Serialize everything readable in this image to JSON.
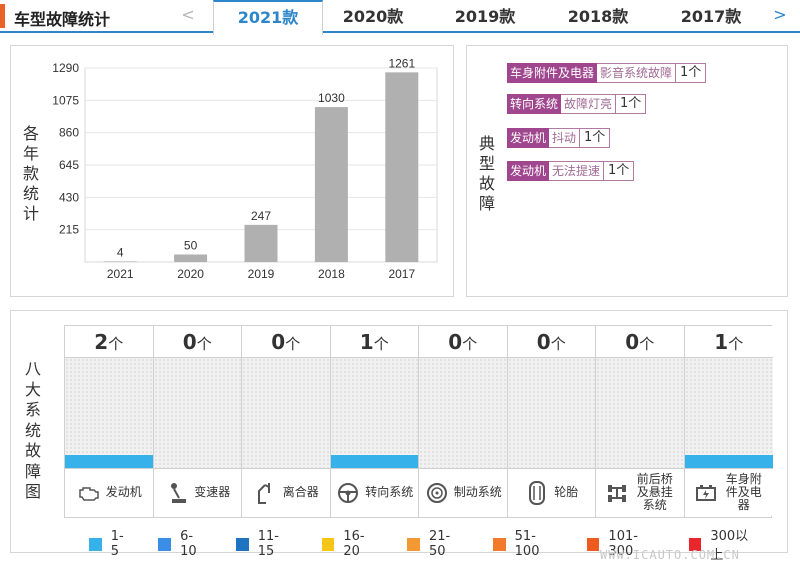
{
  "header": {
    "title": "车型故障统计",
    "prev_arrow": "<",
    "next_arrow": ">",
    "tabs": [
      {
        "label": "2021款",
        "active": true
      },
      {
        "label": "2020款",
        "active": false
      },
      {
        "label": "2019款",
        "active": false
      },
      {
        "label": "2018款",
        "active": false
      },
      {
        "label": "2017款",
        "active": false
      }
    ]
  },
  "chart_panel": {
    "vertical_label": [
      "各",
      "年",
      "款",
      "统",
      "计"
    ]
  },
  "chart_data": {
    "type": "bar",
    "categories": [
      "2021",
      "2020",
      "2019",
      "2018",
      "2017"
    ],
    "values": [
      4,
      50,
      247,
      1030,
      1261
    ],
    "yticks": [
      215,
      430,
      645,
      860,
      1075,
      1290
    ],
    "ylim": [
      0,
      1290
    ],
    "grid": true,
    "bar_color": "#b0b0b0"
  },
  "faults_panel": {
    "vertical_label": [
      "典",
      "型",
      "故",
      "障"
    ],
    "items": [
      {
        "category": "车身附件及电器",
        "symptom": "影音系统故障",
        "count": "1个"
      },
      {
        "category": "转向系统",
        "symptom": "故障灯亮",
        "count": "1个"
      },
      {
        "category": "发动机",
        "symptom": "抖动",
        "count": "1个"
      },
      {
        "category": "发动机",
        "symptom": "无法提速",
        "count": "1个"
      }
    ]
  },
  "grid_panel": {
    "vertical_label": [
      "八",
      "大",
      "系",
      "统",
      "故",
      "障",
      "图"
    ],
    "unit": "个",
    "systems": [
      {
        "name": "发动机",
        "count": "2",
        "icon": "engine-icon",
        "bar": true
      },
      {
        "name": "变速器",
        "count": "0",
        "icon": "gear-shift-icon",
        "bar": false
      },
      {
        "name": "离合器",
        "count": "0",
        "icon": "clutch-pedal-icon",
        "bar": false
      },
      {
        "name": "转向系统",
        "count": "1",
        "icon": "steering-wheel-icon",
        "bar": true
      },
      {
        "name": "制动系统",
        "count": "0",
        "icon": "brake-disc-icon",
        "bar": false
      },
      {
        "name": "轮胎",
        "count": "0",
        "icon": "tire-icon",
        "bar": false
      },
      {
        "name": "前后桥及悬挂系统",
        "count": "0",
        "icon": "axle-suspension-icon",
        "bar": false
      },
      {
        "name": "车身附件及电器",
        "count": "1",
        "icon": "car-battery-icon",
        "bar": true
      }
    ],
    "legend": [
      {
        "label": "1-5",
        "color": "#36b1ea"
      },
      {
        "label": "6-10",
        "color": "#3a8ee6"
      },
      {
        "label": "11-15",
        "color": "#1f74c1"
      },
      {
        "label": "16-20",
        "color": "#f5c518"
      },
      {
        "label": "21-50",
        "color": "#f39833"
      },
      {
        "label": "51-100",
        "color": "#f37a2b"
      },
      {
        "label": "101-300",
        "color": "#ef5a1f"
      },
      {
        "label": "300以上",
        "color": "#e8262b"
      }
    ]
  },
  "watermark": "WWW.ICAUTO.COM.CN"
}
